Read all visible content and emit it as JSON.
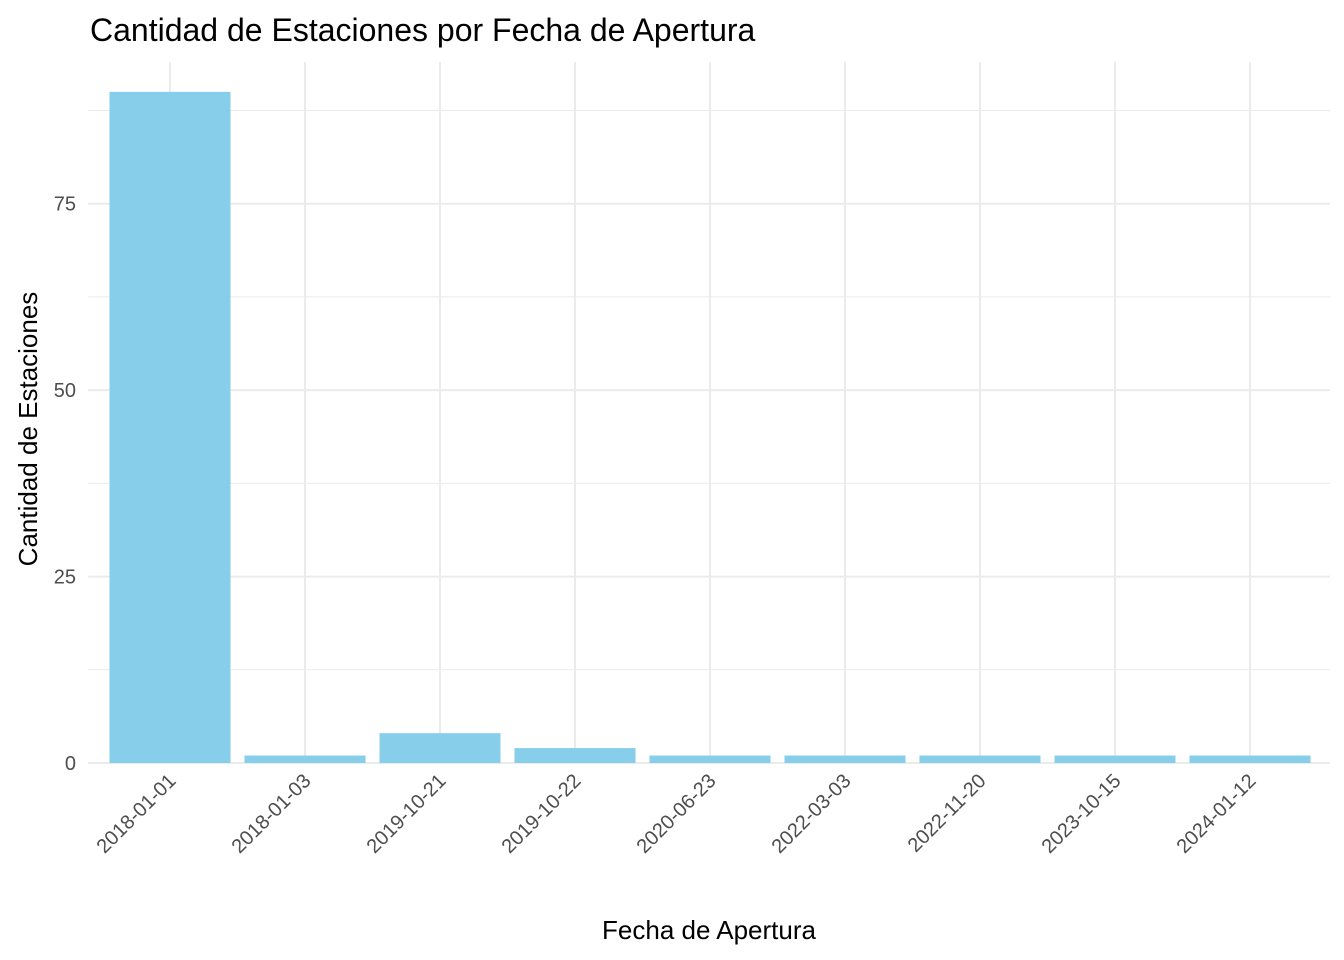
{
  "chart_data": {
    "type": "bar",
    "title": "Cantidad de Estaciones por Fecha de Apertura",
    "xlabel": "Fecha de Apertura",
    "ylabel": "Cantidad de Estaciones",
    "categories": [
      "2018-01-01",
      "2018-01-03",
      "2019-10-21",
      "2019-10-22",
      "2020-06-23",
      "2022-03-03",
      "2022-11-20",
      "2023-10-15",
      "2024-01-12"
    ],
    "values": [
      90,
      1,
      4,
      2,
      1,
      1,
      1,
      1,
      1
    ],
    "ylim": [
      0,
      94
    ],
    "yticks": [
      0,
      25,
      50,
      75
    ],
    "grid": true,
    "bar_color": "#87CEEB",
    "grid_color": "#EBEBEB"
  }
}
